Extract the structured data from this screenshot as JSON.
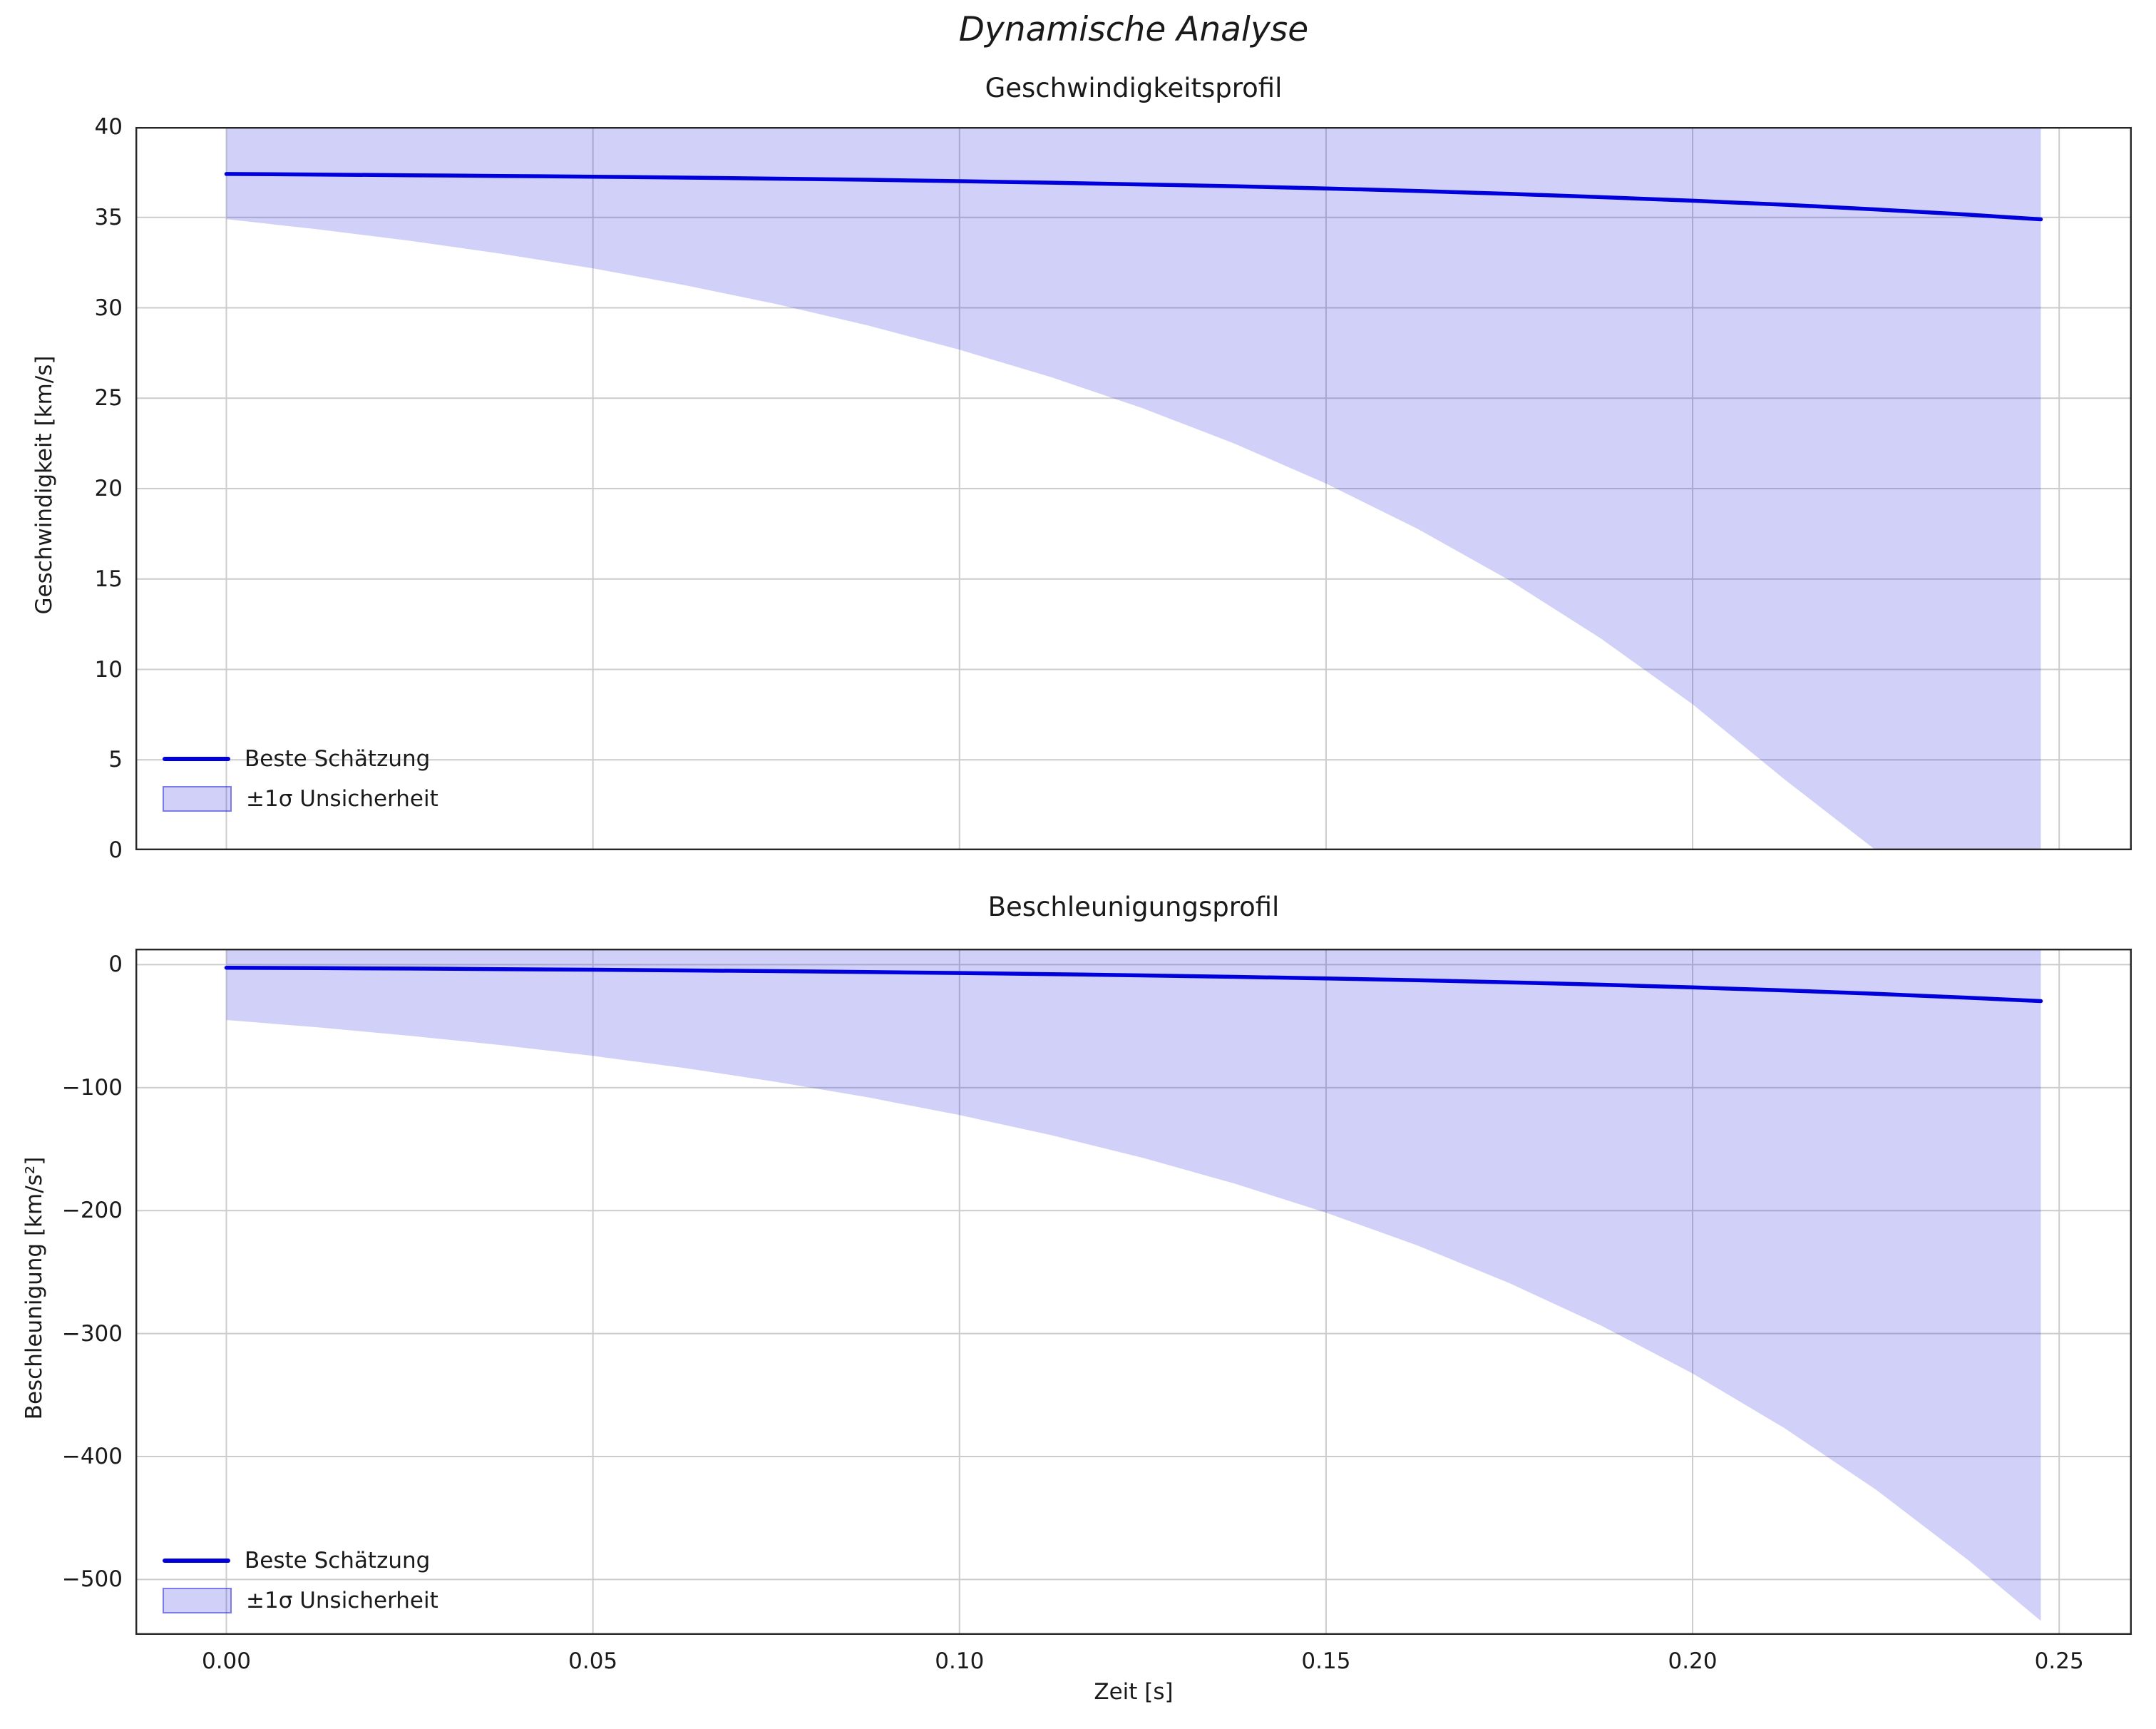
{
  "figure_title": "Dynamische Analyse",
  "chart_data": [
    {
      "type": "line",
      "title": "Geschwindigkeitsprofil",
      "ylabel": "Geschwindigkeit [km/s]",
      "ylim": [
        0,
        40
      ],
      "yticks": [
        0,
        5,
        10,
        15,
        20,
        25,
        30,
        35,
        40
      ],
      "ytick_labels": [
        "0",
        "5",
        "10",
        "15",
        "20",
        "25",
        "30",
        "35",
        "40"
      ],
      "xlim": [
        -0.0124,
        0.2599
      ],
      "xticks": [
        0,
        0.05,
        0.1,
        0.15,
        0.2,
        0.25
      ],
      "grid": true,
      "legend_position": "lower left",
      "x": [
        0,
        0.0125,
        0.025,
        0.0375,
        0.05,
        0.0625,
        0.075,
        0.0875,
        0.1,
        0.1125,
        0.125,
        0.1375,
        0.15,
        0.1625,
        0.175,
        0.1875,
        0.2,
        0.2125,
        0.225,
        0.2375,
        0.2475
      ],
      "series": [
        {
          "name": "Beste Schätzung",
          "type": "line",
          "color": "#0000dd",
          "values": [
            37.4,
            37.37,
            37.33,
            37.29,
            37.25,
            37.2,
            37.14,
            37.08,
            37.0,
            36.92,
            36.82,
            36.72,
            36.6,
            36.46,
            36.3,
            36.12,
            35.92,
            35.7,
            35.44,
            35.15,
            34.89
          ]
        },
        {
          "name": "±1σ Unsicherheit",
          "type": "band",
          "color": "#1414dd",
          "opacity": 0.2,
          "upper": [
            39.9,
            40,
            40,
            40,
            40,
            40,
            40,
            40,
            40,
            40,
            40,
            40,
            40,
            40,
            40,
            40,
            40,
            40,
            40,
            40,
            40
          ],
          "lower": [
            34.9,
            34.34,
            33.71,
            32.99,
            32.18,
            31.25,
            30.21,
            29.02,
            27.68,
            26.16,
            24.44,
            22.49,
            20.28,
            17.77,
            14.93,
            11.71,
            8.07,
            3.93,
            0,
            0,
            0
          ]
        }
      ]
    },
    {
      "type": "line",
      "title": "Beschleunigungsprofil",
      "ylabel": "Beschleunigung [km/s²]",
      "xlabel": "Zeit [s]",
      "ylim": [
        -545,
        13
      ],
      "yticks": [
        0,
        -100,
        -200,
        -300,
        -400,
        -500
      ],
      "ytick_labels": [
        "0",
        "−100",
        "−200",
        "−300",
        "−400",
        "−500"
      ],
      "xlim": [
        -0.0124,
        0.2599
      ],
      "xticks": [
        0,
        0.05,
        0.1,
        0.15,
        0.2,
        0.25
      ],
      "xtick_labels": [
        "0.00",
        "0.05",
        "0.10",
        "0.15",
        "0.20",
        "0.25"
      ],
      "grid": true,
      "legend_position": "lower left",
      "x": [
        0,
        0.0125,
        0.025,
        0.0375,
        0.05,
        0.0625,
        0.075,
        0.0875,
        0.1,
        0.1125,
        0.125,
        0.1375,
        0.15,
        0.1625,
        0.175,
        0.1875,
        0.2,
        0.2125,
        0.225,
        0.2375,
        0.2475
      ],
      "series": [
        {
          "name": "Beste Schätzung",
          "type": "line",
          "color": "#0000dd",
          "values": [
            -2.5,
            -2.83,
            -3.21,
            -3.64,
            -4.12,
            -4.67,
            -5.29,
            -6.0,
            -6.8,
            -7.7,
            -8.73,
            -9.89,
            -11.2,
            -12.7,
            -14.39,
            -16.3,
            -18.47,
            -20.93,
            -23.72,
            -26.88,
            -29.65
          ]
        },
        {
          "name": "±1σ Unsicherheit",
          "type": "band",
          "color": "#1414dd",
          "opacity": 0.2,
          "upper": [
            13,
            13,
            13,
            13,
            13,
            13,
            13,
            13,
            13,
            13,
            13,
            13,
            13,
            13,
            13,
            13,
            13,
            13,
            13,
            13,
            13
          ],
          "lower": [
            -45,
            -51,
            -57.8,
            -65.5,
            -74.2,
            -84.1,
            -95.3,
            -107.9,
            -122.3,
            -138.6,
            -157.1,
            -178,
            -201.7,
            -228.5,
            -259,
            -293.4,
            -332.5,
            -376.8,
            -426.9,
            -483.8,
            -533.7
          ]
        }
      ]
    }
  ]
}
